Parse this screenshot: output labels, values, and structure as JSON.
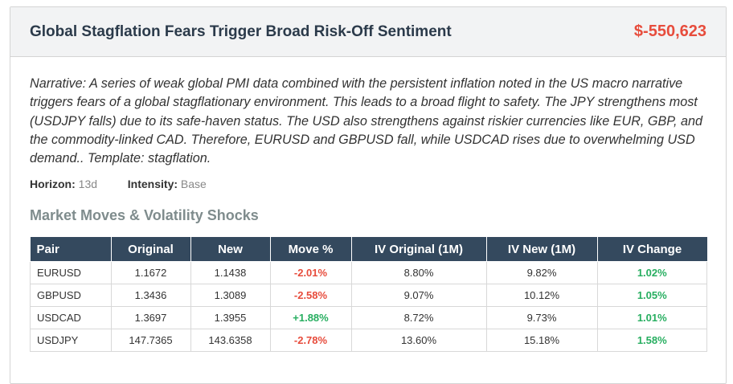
{
  "header": {
    "title": "Global Stagflation Fears Trigger Broad Risk-Off Sentiment",
    "pnl": "$-550,623"
  },
  "narrative": "Narrative: A series of weak global PMI data combined with the persistent inflation noted in the US macro narrative triggers fears of a global stagflationary environment. This leads to a broad flight to safety. The JPY strengthens most (USDJPY falls) due to its safe-haven status. The USD also strengthens against riskier currencies like EUR, GBP, and the commodity-linked CAD. Therefore, EURUSD and GBPUSD fall, while USDCAD rises due to overwhelming USD demand.. Template: stagflation.",
  "meta": {
    "horizon_label": "Horizon:",
    "horizon_value": "13d",
    "intensity_label": "Intensity:",
    "intensity_value": "Base"
  },
  "section_title": "Market Moves & Volatility Shocks",
  "table": {
    "headers": [
      "Pair",
      "Original",
      "New",
      "Move %",
      "IV Original (1M)",
      "IV New (1M)",
      "IV Change"
    ],
    "rows": [
      {
        "pair": "EURUSD",
        "original": "1.1672",
        "new": "1.1438",
        "move": "-2.01%",
        "iv_original": "8.80%",
        "iv_new": "9.82%",
        "iv_change": "1.02%"
      },
      {
        "pair": "GBPUSD",
        "original": "1.3436",
        "new": "1.3089",
        "move": "-2.58%",
        "iv_original": "9.07%",
        "iv_new": "10.12%",
        "iv_change": "1.05%"
      },
      {
        "pair": "USDCAD",
        "original": "1.3697",
        "new": "1.3955",
        "move": "+1.88%",
        "iv_original": "8.72%",
        "iv_new": "9.73%",
        "iv_change": "1.01%"
      },
      {
        "pair": "USDJPY",
        "original": "147.7365",
        "new": "143.6358",
        "move": "-2.78%",
        "iv_original": "13.60%",
        "iv_new": "15.18%",
        "iv_change": "1.58%"
      }
    ]
  },
  "colors": {
    "negative": "#e74c3c",
    "positive": "#27ae60",
    "table_header": "#34495e"
  }
}
